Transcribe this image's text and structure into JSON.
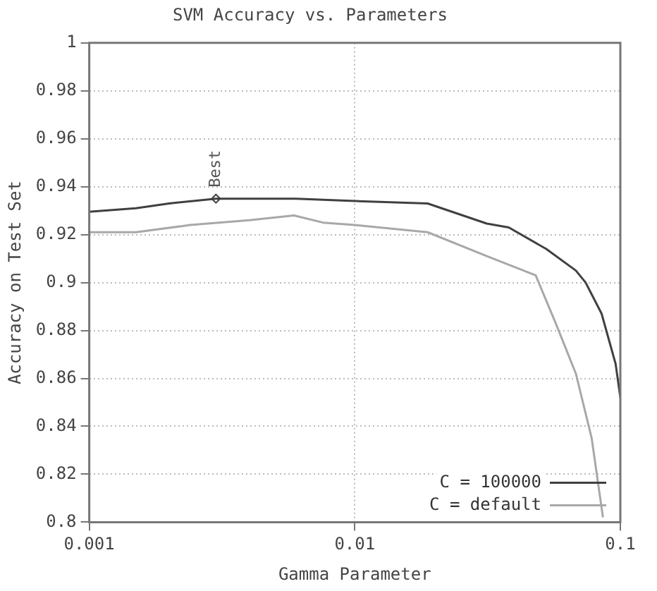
{
  "chart_data": {
    "type": "line",
    "title": "SVM Accuracy vs. Parameters",
    "xlabel": "Gamma Parameter",
    "ylabel": "Accuracy on Test Set",
    "log": "x",
    "xlim": [
      0.001,
      0.1
    ],
    "xticks": [
      0.001,
      0.01,
      0.1
    ],
    "ylim": [
      0.8,
      1
    ],
    "yticks": [
      0.8,
      0.82,
      0.84,
      0.86,
      0.88,
      0.9,
      0.92,
      0.94,
      0.96,
      0.98,
      1
    ],
    "grid": true,
    "legend": "bottom right",
    "marker": "none",
    "line_style": "solid",
    "annotations": [
      {
        "text": "Best",
        "x": 0.003,
        "y": 0.935
      }
    ],
    "series": [
      {
        "name": "C = 100000",
        "color": "#404040",
        "x": [
          0.001,
          0.0015,
          0.002,
          0.003,
          0.004,
          0.006,
          0.01,
          0.0188,
          0.0314,
          0.038,
          0.0526,
          0.068,
          0.074,
          0.085,
          0.096,
          0.1
        ],
        "values": [
          0.9295,
          0.931,
          0.933,
          0.935,
          0.935,
          0.935,
          0.934,
          0.933,
          0.9246,
          0.923,
          0.914,
          0.905,
          0.9,
          0.887,
          0.866,
          0.852
        ]
      },
      {
        "name": "C = default",
        "color": "#a8a8a8",
        "x": [
          0.001,
          0.0015,
          0.0024,
          0.004,
          0.0059,
          0.0076,
          0.01,
          0.0188,
          0.0314,
          0.048,
          0.0571,
          0.068,
          0.078,
          0.086
        ],
        "values": [
          0.921,
          0.921,
          0.924,
          0.926,
          0.928,
          0.925,
          0.924,
          0.921,
          0.911,
          0.903,
          0.883,
          0.862,
          0.835,
          0.802
        ]
      }
    ]
  }
}
